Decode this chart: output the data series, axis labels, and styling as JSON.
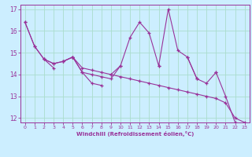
{
  "xlabel": "Windchill (Refroidissement éolien,°C)",
  "bg_color": "#cceeff",
  "grid_color": "#aaddcc",
  "line_color": "#993399",
  "xlim": [
    -0.5,
    23.5
  ],
  "ylim": [
    11.8,
    17.2
  ],
  "xticks": [
    0,
    1,
    2,
    3,
    4,
    5,
    6,
    7,
    8,
    9,
    10,
    11,
    12,
    13,
    14,
    15,
    16,
    17,
    18,
    19,
    20,
    21,
    22,
    23
  ],
  "yticks": [
    12,
    13,
    14,
    15,
    16,
    17
  ],
  "line1": [
    16.4,
    15.3,
    14.7,
    14.5,
    14.6,
    14.8,
    14.1,
    14.0,
    13.9,
    13.8,
    14.4,
    15.7,
    16.4,
    15.9,
    14.4,
    17.0,
    15.1,
    14.8,
    13.8,
    13.6,
    14.1,
    13.0,
    11.8,
    11.7
  ],
  "line2": [
    16.4,
    15.3,
    14.7,
    14.5,
    14.6,
    14.8,
    14.3,
    14.2,
    14.1,
    14.0,
    13.9,
    13.8,
    13.7,
    13.6,
    13.5,
    13.4,
    13.3,
    13.2,
    13.1,
    13.0,
    12.9,
    12.7,
    12.0,
    11.8
  ],
  "line3": [
    null,
    null,
    14.7,
    14.3,
    null,
    14.8,
    null,
    null,
    null,
    14.0,
    14.4,
    null,
    null,
    null,
    14.4,
    null,
    null,
    14.8,
    13.8,
    null,
    14.1,
    null,
    null,
    null
  ],
  "line4": [
    null,
    null,
    null,
    null,
    14.6,
    14.8,
    14.1,
    13.6,
    13.5,
    null,
    null,
    null,
    null,
    null,
    null,
    null,
    null,
    null,
    null,
    null,
    null,
    null,
    null,
    null
  ]
}
